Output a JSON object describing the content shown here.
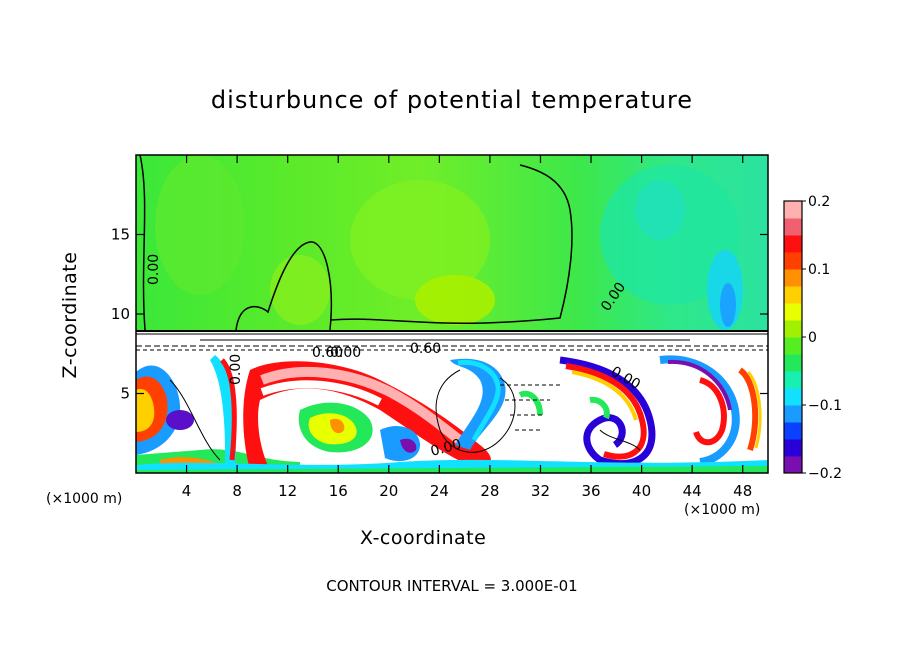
{
  "chart_data": {
    "type": "heatmap",
    "title": "disturbunce of potential temperature",
    "xlabel": "X-coordinate",
    "ylabel": "Z-coordinate",
    "x_unit_label_left": "(×1000 m)",
    "x_unit_label_right": "(×1000 m)",
    "xlim": [
      0,
      50
    ],
    "ylim": [
      0,
      20
    ],
    "x_ticks": [
      4,
      8,
      12,
      16,
      20,
      24,
      28,
      32,
      36,
      40,
      44,
      48
    ],
    "y_ticks": [
      5,
      10,
      15
    ],
    "colorbar": {
      "min": -0.2,
      "max": 0.2,
      "ticks": [
        "0.2",
        "0.1",
        "0",
        "−0.1",
        "−0.2"
      ],
      "colors": [
        "#7a0fb0",
        "#2a00d8",
        "#0a40ff",
        "#1a9bff",
        "#12e0ff",
        "#17f0b0",
        "#22e85a",
        "#55ee22",
        "#a0f000",
        "#e8ff00",
        "#ffd000",
        "#ff9000",
        "#ff4000",
        "#ff1010",
        "#f06070",
        "#ffb0b0"
      ]
    },
    "contour_labels": [
      "0.00",
      "0.00",
      "0.00",
      "0.60",
      "0.60",
      "0.00",
      "0.00",
      "0.00"
    ],
    "contour_interval_text": "CONTOUR INTERVAL = 3.000E-01"
  }
}
